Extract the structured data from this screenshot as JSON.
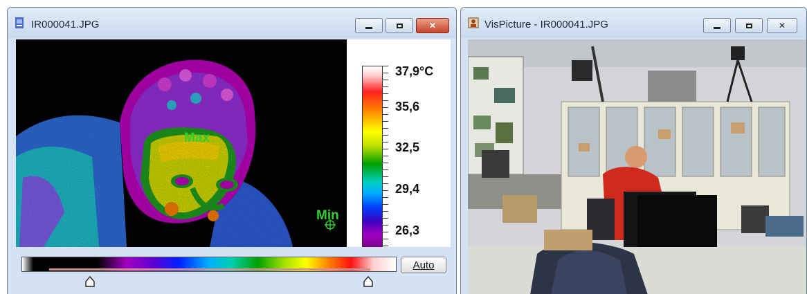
{
  "ir_window": {
    "title": "IR000041.JPG",
    "scale_labels": [
      "37,9°C",
      "35,6",
      "32,5",
      "29,4",
      "26,3"
    ],
    "markers": {
      "max": "Max",
      "min": "Min"
    },
    "auto_button": "Auto"
  },
  "vis_window": {
    "title": "VisPicture - IR000041.JPG"
  },
  "colors": {
    "marker": "#30d030",
    "close_button": "#c7442a",
    "window_frame": "#d4e2f3"
  }
}
